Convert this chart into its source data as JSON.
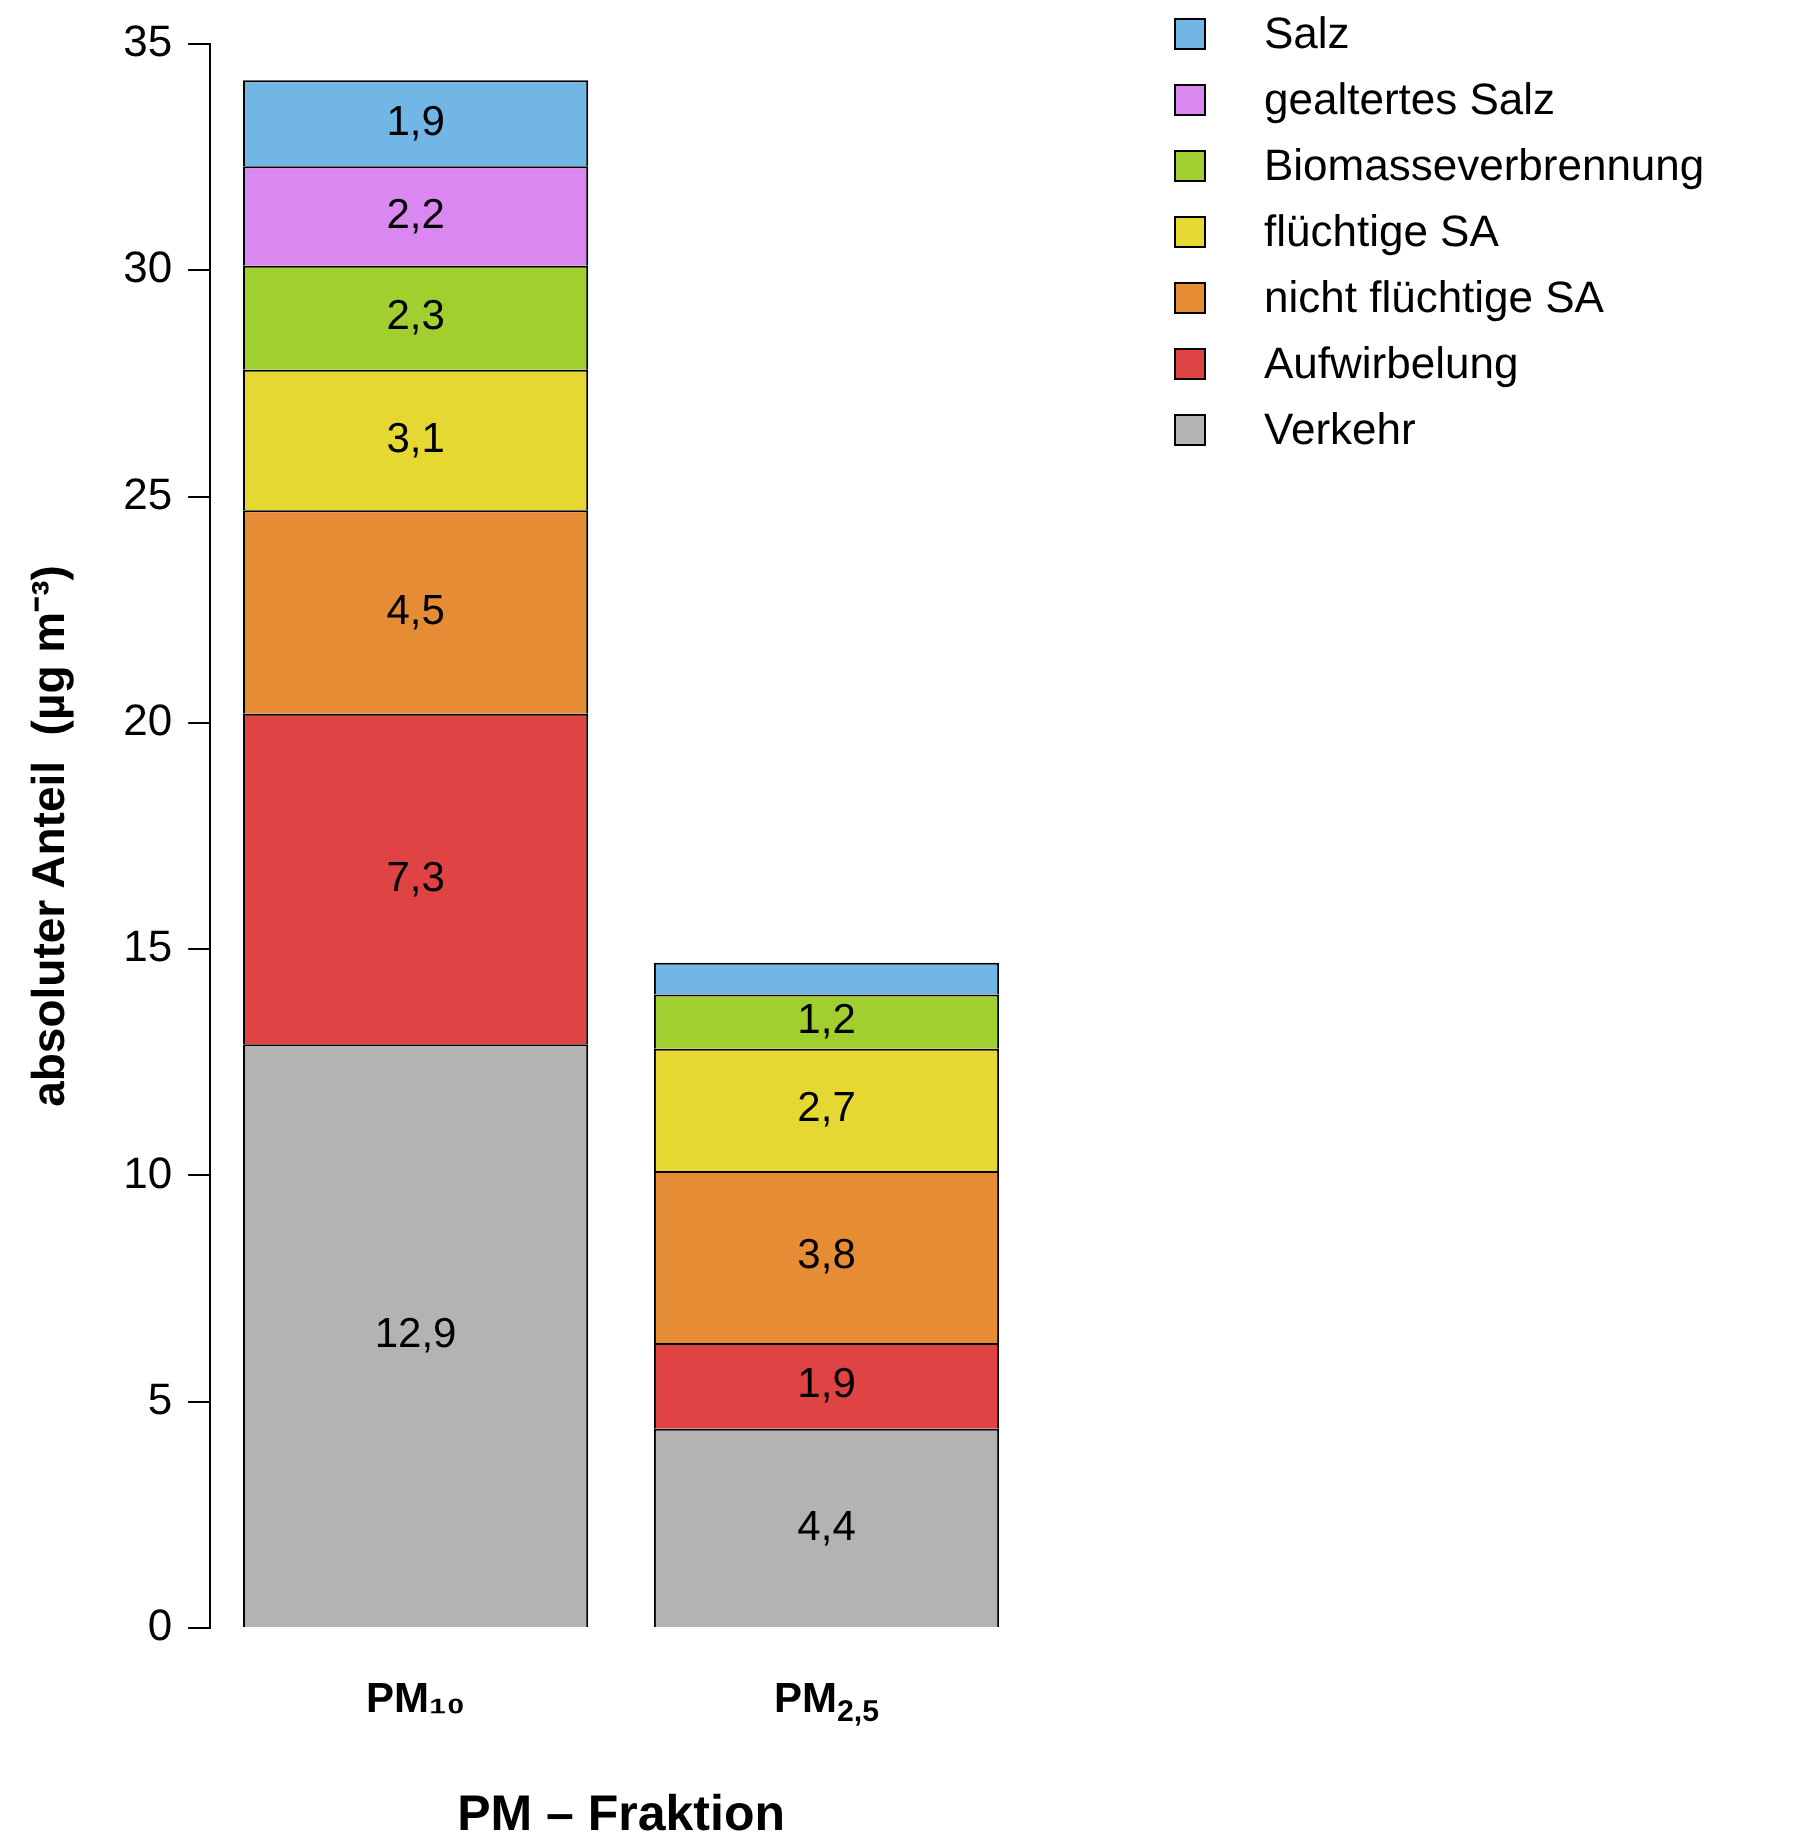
{
  "chart_data": {
    "type": "bar",
    "stacked": true,
    "xlabel": "PM – Fraktion",
    "ylabel": "absoluter Anteil  (µg m⁻³)",
    "categories": [
      "PM₁₀",
      "PM$_{2,5}$"
    ],
    "ylim": [
      0,
      35
    ],
    "yticks": [
      0,
      5,
      10,
      15,
      20,
      25,
      30,
      35
    ],
    "grid": false,
    "legend": "top right",
    "series": [
      {
        "name": "Verkehr",
        "color": "#b3b3b3",
        "values": [
          12.9,
          4.4
        ],
        "value_labels": [
          "12,9",
          "4,4"
        ]
      },
      {
        "name": "Aufwirbelung",
        "color": "#e04343",
        "values": [
          7.3,
          1.9
        ],
        "value_labels": [
          "7,3",
          "1,9"
        ]
      },
      {
        "name": "nicht flüchtige SA",
        "color": "#e68c35",
        "values": [
          4.5,
          3.8
        ],
        "value_labels": [
          "4,5",
          "3,8"
        ]
      },
      {
        "name": "flüchtige SA",
        "color": "#e6d832",
        "values": [
          3.1,
          2.7
        ],
        "value_labels": [
          "3,1",
          "2,7"
        ]
      },
      {
        "name": "Biomasseverbrennung",
        "color": "#a0cf2f",
        "values": [
          2.3,
          1.2
        ],
        "value_labels": [
          "2,3",
          "1,2"
        ]
      },
      {
        "name": "gealtertes Salz",
        "color": "#da88f0",
        "values": [
          2.2,
          null
        ],
        "value_labels": [
          "2,2",
          null
        ]
      },
      {
        "name": "Salz",
        "color": "#72b6e6",
        "values": [
          1.9,
          0.7
        ],
        "value_labels": [
          "1,9",
          null
        ]
      }
    ]
  }
}
